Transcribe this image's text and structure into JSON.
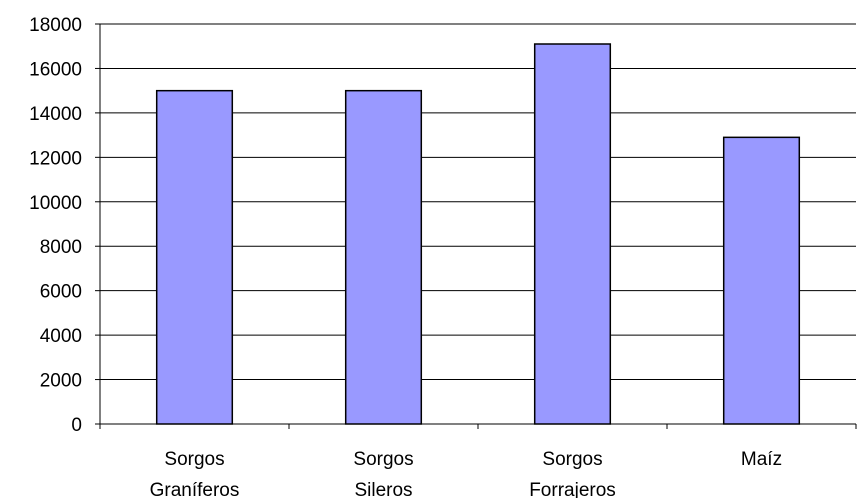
{
  "chart_data": {
    "type": "bar",
    "title": "",
    "xlabel": "",
    "ylabel": "",
    "categories": [
      [
        "Sorgos",
        "Graníferos"
      ],
      [
        "Sorgos",
        "Sileros"
      ],
      [
        "Sorgos",
        "Forrajeros"
      ],
      [
        "Maíz"
      ]
    ],
    "values": [
      15000,
      15000,
      17100,
      12900
    ],
    "ylim": [
      0,
      18000
    ],
    "yticks": [
      0,
      2000,
      4000,
      6000,
      8000,
      10000,
      12000,
      14000,
      16000,
      18000
    ],
    "grid": true,
    "legend": "none",
    "colors": {
      "bar_fill": "#9999ff",
      "bar_stroke": "#000000",
      "grid": "#000000",
      "axis": "#000000",
      "background": "#ffffff"
    }
  }
}
